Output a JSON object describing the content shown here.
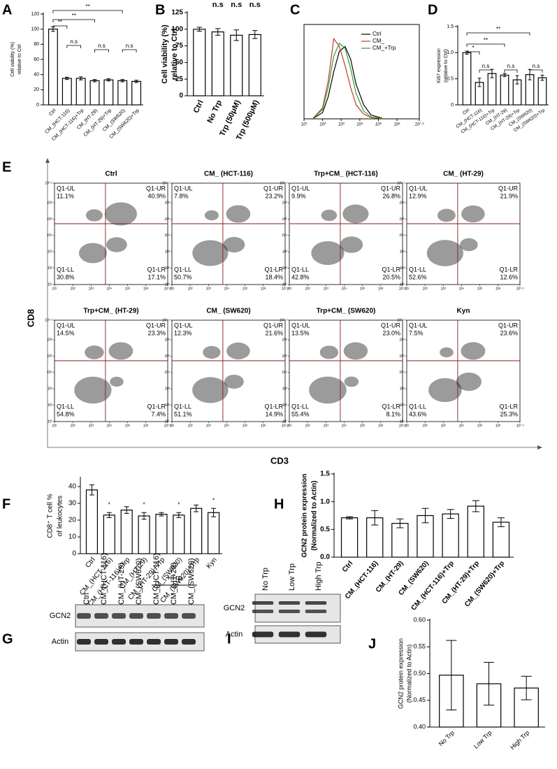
{
  "chart_data": [
    {
      "panel": "A",
      "type": "bar",
      "y_label": [
        "Cell viability (%)",
        "relative to Ctrl"
      ],
      "categories": [
        "Ctrl",
        "CM_(HCT-116)",
        "CM_(HCT-116)+Trp",
        "CM_(HT-29)",
        "CM_(HT-29)+Trp",
        "CM_(SW620)",
        "CM_(SW620)+Trp"
      ],
      "values": [
        100,
        35,
        35,
        32,
        33,
        32,
        31
      ],
      "errors": [
        3,
        1.5,
        2,
        1.5,
        1.5,
        1.5,
        1.5
      ],
      "ylim": [
        0,
        120
      ],
      "yticks": [
        0,
        20,
        40,
        60,
        80,
        100,
        120
      ],
      "annotations": [
        "**",
        "**",
        "**",
        "n.s",
        "n.s",
        "n.s"
      ],
      "bar_color": "#ffffff",
      "edge_color": "#000000"
    },
    {
      "panel": "B",
      "type": "bar",
      "y_label": [
        "Cell viability (%)",
        "relative to Ctrl"
      ],
      "categories": [
        "Ctrl",
        "No Trp",
        "Trp (50μM)",
        "Trp (500μM)"
      ],
      "values": [
        100,
        96,
        91,
        92
      ],
      "errors": [
        3,
        5,
        8,
        6
      ],
      "ylim": [
        0,
        125
      ],
      "yticks": [
        0,
        25,
        50,
        75,
        100,
        125
      ],
      "annotations": [
        "n.s",
        "n.s",
        "n.s"
      ],
      "bar_color": "#ffffff",
      "edge_color": "#000000"
    },
    {
      "panel": "C",
      "type": "line",
      "log_scale": true,
      "x": [
        32,
        100,
        200,
        400,
        800,
        1600,
        3200,
        6300,
        16000,
        40000,
        160000
      ],
      "xlim": [
        10,
        15848932
      ],
      "xticks": [
        {
          "value": 10,
          "label": "10¹"
        },
        {
          "value": 100,
          "label": "10²"
        },
        {
          "value": 1000,
          "label": "10³"
        },
        {
          "value": 10000,
          "label": "10⁴"
        },
        {
          "value": 100000,
          "label": "10⁵"
        },
        {
          "value": 1000000,
          "label": "10⁶"
        },
        {
          "value": 15848932,
          "label": "10⁷·²"
        }
      ],
      "ylim": [
        0,
        300
      ],
      "legend": "upper right",
      "series": [
        {
          "name": "Ctrl",
          "color": "#000000",
          "values": [
            2,
            20,
            70,
            150,
            215,
            230,
            190,
            110,
            45,
            12,
            2
          ]
        },
        {
          "name": "CM_",
          "color": "#c0392b",
          "values": [
            3,
            35,
            120,
            255,
            230,
            170,
            100,
            45,
            15,
            4,
            1
          ]
        },
        {
          "name": "CM_+Trp",
          "color": "#2ca02c",
          "values": [
            3,
            30,
            100,
            200,
            240,
            225,
            160,
            80,
            25,
            6,
            1
          ]
        }
      ]
    },
    {
      "panel": "D",
      "type": "bar",
      "y_label": [
        "Ki67 expression",
        "(relative to Ctrl)"
      ],
      "categories": [
        "Ctrl",
        "CM_(HCT-116)",
        "CM_(HCT-116)+Trp",
        "CM_(HT-29)",
        "CM_(HT-29)+Trp",
        "CM_(SW620)",
        "CM_(SW620)+Trp"
      ],
      "values": [
        1.0,
        0.43,
        0.6,
        0.57,
        0.48,
        0.58,
        0.52
      ],
      "errors": [
        0.03,
        0.08,
        0.08,
        0.03,
        0.08,
        0.1,
        0.05
      ],
      "ylim": [
        0,
        1.5
      ],
      "yticks": [
        0,
        0.5,
        {
          "value": 1,
          "label": "1.0"
        },
        1.5
      ],
      "annotations": [
        "*",
        "**",
        "**",
        "n.s",
        "n.s",
        "n.s"
      ],
      "bar_color": "#ffffff",
      "edge_color": "#000000"
    },
    {
      "panel": "E",
      "type": "flow",
      "x_label": "CD3",
      "y_label": "CD8",
      "quadrant_names": [
        "Q1-UL",
        "Q1-UR",
        "Q1-LL",
        "Q1-LR"
      ],
      "quadrant_color": "#8b1a1a",
      "ticks": [
        {
          "value": 10,
          "label": "10¹"
        },
        {
          "value": 100,
          "label": "10²"
        },
        {
          "value": 1000,
          "label": "10³"
        },
        {
          "value": 10000,
          "label": "10⁴"
        },
        {
          "value": 100000,
          "label": "10⁵"
        },
        {
          "value": 1000000,
          "label": "10⁶"
        },
        {
          "value": 15848932,
          "label": "10⁷·²"
        }
      ],
      "plots": [
        {
          "title": "Ctrl",
          "values": [
            11.1,
            40.9,
            30.8,
            17.1
          ],
          "value_labels": [
            "11.1%",
            "40.9%",
            "30.8%",
            "17.1%"
          ]
        },
        {
          "title": "CM_ (HCT-116)",
          "values": [
            7.8,
            23.2,
            50.7,
            18.4
          ],
          "value_labels": [
            "7.8%",
            "23.2%",
            "50.7%",
            "18.4%"
          ]
        },
        {
          "title": "Trp+CM_ (HCT-116)",
          "values": [
            9.9,
            26.8,
            42.8,
            20.5
          ],
          "value_labels": [
            "9.9%",
            "26.8%",
            "42.8%",
            "20.5%"
          ]
        },
        {
          "title": "CM_ (HT-29)",
          "values": [
            12.9,
            21.9,
            52.6,
            12.6
          ],
          "value_labels": [
            "12.9%",
            "21.9%",
            "52.6%",
            "12.6%"
          ]
        },
        {
          "title": "Trp+CM_ (HT-29)",
          "values": [
            14.5,
            23.3,
            54.8,
            7.4
          ],
          "value_labels": [
            "14.5%",
            "23.3%",
            "54.8%",
            "7.4%"
          ]
        },
        {
          "title": "CM_ (SW620)",
          "values": [
            12.3,
            21.6,
            51.1,
            14.9
          ],
          "value_labels": [
            "12.3%",
            "21.6%",
            "51.1%",
            "14.9%"
          ]
        },
        {
          "title": "Trp+CM_ (SW620)",
          "values": [
            13.5,
            23.0,
            55.4,
            8.1
          ],
          "value_labels": [
            "13.5%",
            "23.0%",
            "55.4%",
            "8.1%"
          ]
        },
        {
          "title": "Kyn",
          "values": [
            7.5,
            23.6,
            43.6,
            25.3
          ],
          "value_labels": [
            "7.5%",
            "23.6%",
            "43.6%",
            "25.3%"
          ]
        }
      ]
    },
    {
      "panel": "F",
      "type": "bar",
      "y_label": [
        "CD8⁺ T cell %",
        "of leukocytes"
      ],
      "categories": [
        "Ctrl",
        "CM_(HCT-116)",
        "CM_(HCT-116)+Trp",
        "CM_(HT-29)",
        "CM_(HT-29)+Trp",
        "CM_(SW620)",
        "CM_(SW620)+Trp",
        "Kyn"
      ],
      "values": [
        38,
        23,
        26,
        22.5,
        23.5,
        23,
        27,
        24.5
      ],
      "errors": [
        3,
        1.5,
        2,
        2,
        1,
        1.5,
        2,
        2.5
      ],
      "ylim": [
        0,
        45
      ],
      "yticks": [
        0,
        10,
        20,
        30,
        40
      ],
      "annotations": [
        "*",
        "*",
        "*",
        "*"
      ],
      "bar_color": "#ffffff",
      "edge_color": "#000000"
    },
    {
      "panel": "H",
      "type": "bar",
      "y_label": [
        "GCN2 protein expression",
        "(Normalized to Actin)"
      ],
      "categories": [
        "Ctrl",
        "CM_(HCT-116)",
        "CM_(HT-29)",
        "CM_(SW620)",
        "CM_(HCT-116)+Trp",
        "CM_(HT-29)+Trp",
        "CM_(SW620)+Trp"
      ],
      "values": [
        0.71,
        0.71,
        0.61,
        0.75,
        0.78,
        0.92,
        0.63
      ],
      "errors": [
        0.02,
        0.13,
        0.08,
        0.13,
        0.08,
        0.1,
        0.08
      ],
      "ylim": [
        0,
        1.5
      ],
      "yticks": [
        {
          "value": 0,
          "label": "0.0"
        },
        0.5,
        {
          "value": 1,
          "label": "1.0"
        },
        1.5
      ],
      "annotations": [],
      "bar_color": "#ffffff",
      "edge_color": "#000000"
    },
    {
      "panel": "G",
      "type": "blot",
      "lanes": [
        "Ctrl",
        "CM_(HCT-116)",
        "CM_(HT-29)",
        "CM_(SW620)",
        "CM_(HCT-116)",
        "CM_(HT-29)",
        "CM_(SW620)"
      ],
      "group_label": "+Trp",
      "rows": [
        "GCN2",
        "Actin"
      ]
    },
    {
      "panel": "I",
      "type": "blot",
      "lanes": [
        "No Trp",
        "Low Trp",
        "High Trp"
      ],
      "rows": [
        "GCN2",
        "Actin"
      ]
    },
    {
      "panel": "J",
      "type": "bar",
      "y_label": [
        "GCN2 protein expression",
        "(Normalized to Actin)"
      ],
      "categories": [
        "No Trp",
        "Low Trp",
        "High Trp"
      ],
      "values": [
        0.497,
        0.481,
        0.473
      ],
      "errors": [
        0.065,
        0.04,
        0.022
      ],
      "ylim": [
        0.4,
        0.6
      ],
      "yticks": [
        {
          "value": 0.4,
          "label": "0.40"
        },
        0.45,
        {
          "value": 0.5,
          "label": "0.50"
        },
        0.55,
        {
          "value": 0.6,
          "label": "0.60"
        }
      ],
      "annotations": [],
      "bar_color": "#ffffff",
      "edge_color": "#000000"
    }
  ]
}
